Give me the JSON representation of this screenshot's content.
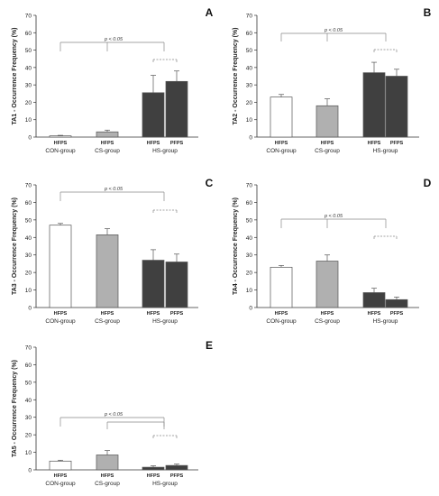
{
  "colors": {
    "con": "#ffffff",
    "cs": "#b0b0b0",
    "hs": "#404040",
    "stroke": "#555555",
    "bracket": "#888888"
  },
  "chart_data": [
    {
      "type": "bar",
      "panel_label": "A",
      "ylabel": "TA1 - Occurrence Frequency (%)",
      "ylim": [
        0,
        70
      ],
      "yticks": [
        0,
        10,
        20,
        30,
        40,
        50,
        60,
        70
      ],
      "groups": [
        "CON-group",
        "CS-group",
        "HS-group"
      ],
      "bars": [
        {
          "group": "CON-group",
          "label": "HFPS",
          "value": 0.7,
          "error": 0.3
        },
        {
          "group": "CS-group",
          "label": "HFPS",
          "value": 3,
          "error": 1
        },
        {
          "group": "HS-group",
          "label": "HFPS",
          "value": 25.5,
          "error": 10
        },
        {
          "group": "HS-group",
          "label": "PFPS",
          "value": 32,
          "error": 6
        }
      ],
      "annotation": "p < 0.05"
    },
    {
      "type": "bar",
      "panel_label": "B",
      "ylabel": "TA2 - Occurrence Frequency (%)",
      "ylim": [
        0,
        70
      ],
      "yticks": [
        0,
        10,
        20,
        30,
        40,
        50,
        60,
        70
      ],
      "groups": [
        "CON-group",
        "CS-group",
        "HS-group"
      ],
      "bars": [
        {
          "group": "CON-group",
          "label": "HFPS",
          "value": 23,
          "error": 1.5
        },
        {
          "group": "CS-group",
          "label": "HFPS",
          "value": 18,
          "error": 4
        },
        {
          "group": "HS-group",
          "label": "HFPS",
          "value": 37,
          "error": 6
        },
        {
          "group": "HS-group",
          "label": "PFPS",
          "value": 35,
          "error": 4
        }
      ],
      "annotation": "p < 0.05"
    },
    {
      "type": "bar",
      "panel_label": "C",
      "ylabel": "TA3 - Occurrence Frequency (%)",
      "ylim": [
        0,
        70
      ],
      "yticks": [
        0,
        10,
        20,
        30,
        40,
        50,
        60,
        70
      ],
      "groups": [
        "CON-group",
        "CS-group",
        "HS-group"
      ],
      "bars": [
        {
          "group": "CON-group",
          "label": "HFPS",
          "value": 47,
          "error": 1
        },
        {
          "group": "CS-group",
          "label": "HFPS",
          "value": 41.5,
          "error": 3.5
        },
        {
          "group": "HS-group",
          "label": "HFPS",
          "value": 27,
          "error": 6
        },
        {
          "group": "HS-group",
          "label": "PFPS",
          "value": 26,
          "error": 4.5
        }
      ],
      "annotation": "p < 0.05"
    },
    {
      "type": "bar",
      "panel_label": "D",
      "ylabel": "TA4 - Occurrence Frequency (%)",
      "ylim": [
        0,
        70
      ],
      "yticks": [
        0,
        10,
        20,
        30,
        40,
        50,
        60,
        70
      ],
      "groups": [
        "CON-group",
        "CS-group",
        "HS-group"
      ],
      "bars": [
        {
          "group": "CON-group",
          "label": "HFPS",
          "value": 23,
          "error": 1
        },
        {
          "group": "CS-group",
          "label": "HFPS",
          "value": 26.5,
          "error": 3.5
        },
        {
          "group": "HS-group",
          "label": "HFPS",
          "value": 8.5,
          "error": 2.5
        },
        {
          "group": "HS-group",
          "label": "PFPS",
          "value": 4.5,
          "error": 1.5
        }
      ],
      "annotation": "p < 0.05"
    },
    {
      "type": "bar",
      "panel_label": "E",
      "ylabel": "TA5 - Occurrence Frequency (%)",
      "ylim": [
        0,
        70
      ],
      "yticks": [
        0,
        10,
        20,
        30,
        40,
        50,
        60,
        70
      ],
      "groups": [
        "CON-group",
        "CS-group",
        "HS-group"
      ],
      "bars": [
        {
          "group": "CON-group",
          "label": "HFPS",
          "value": 5,
          "error": 0.5
        },
        {
          "group": "CS-group",
          "label": "HFPS",
          "value": 8.5,
          "error": 2.5
        },
        {
          "group": "HS-group",
          "label": "HFPS",
          "value": 1.5,
          "error": 0.8
        },
        {
          "group": "HS-group",
          "label": "PFPS",
          "value": 2.5,
          "error": 0.8
        }
      ],
      "annotation": "p < 0.05"
    }
  ]
}
